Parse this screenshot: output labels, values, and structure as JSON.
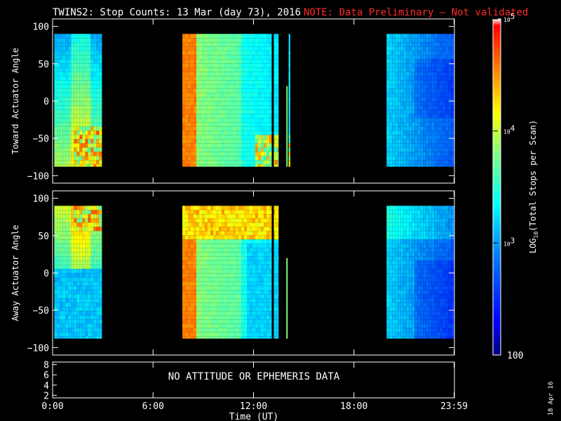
{
  "title": {
    "main": "TWINS2: Stop Counts: 13 Mar (day  73), 2016",
    "note": "NOTE: Data Preliminary – Not validated"
  },
  "chart_data": [
    {
      "type": "heatmap",
      "ylabel": "Toward Actuator Angle",
      "ylim": [
        -110,
        110
      ],
      "yticks": [
        "100",
        "50",
        "0",
        "−50",
        "−100"
      ],
      "ytick_values": [
        100,
        50,
        0,
        -50,
        -100
      ],
      "xlim_hours": [
        0,
        24
      ],
      "data_y_range": [
        -88,
        90
      ],
      "coverage_hours": [
        [
          0.1,
          2.95
        ],
        [
          7.75,
          13.5
        ],
        [
          14.1,
          14.2
        ],
        [
          19.95,
          24
        ]
      ],
      "gap_lines_hours": [
        13.15
      ],
      "spike": {
        "hour": 14.0,
        "y_range": [
          -88,
          20
        ]
      }
    },
    {
      "type": "heatmap",
      "ylabel": "Away Actuator Angle",
      "ylim": [
        -110,
        110
      ],
      "yticks": [
        "100",
        "50",
        "0",
        "−50",
        "−100"
      ],
      "ytick_values": [
        100,
        50,
        0,
        -50,
        -100
      ],
      "xlim_hours": [
        0,
        24
      ],
      "data_y_range": [
        -88,
        90
      ],
      "coverage_hours": [
        [
          0.1,
          2.95
        ],
        [
          7.75,
          13.5
        ],
        [
          19.95,
          24
        ]
      ],
      "gap_lines_hours": [
        13.15
      ],
      "spike": {
        "hour": 14.0,
        "y_range": [
          -88,
          20
        ]
      }
    }
  ],
  "xaxis": {
    "ticks": [
      "0:00",
      "6:00",
      "12:00",
      "18:00",
      "23:59"
    ],
    "tick_hours": [
      0,
      6,
      12,
      18,
      23.98
    ],
    "label": "Time (UT)"
  },
  "bottom_panel": {
    "yticks": [
      "8",
      "6",
      "4",
      "2"
    ],
    "ytick_values": [
      8,
      6,
      4,
      2
    ],
    "ylim": [
      1.5,
      8.5
    ],
    "message": "NO ATTITUDE OR EPHEMERIS DATA"
  },
  "colorbar": {
    "label_prefix": "LOG",
    "label_sub": "10",
    "label_suffix": "(Total Stops per Scan)",
    "tick_base": "10",
    "ticks": [
      {
        "exp": "5",
        "log": 5
      },
      {
        "exp": "4",
        "log": 4
      },
      {
        "exp": "3",
        "log": 3
      }
    ],
    "bottom_label": "100",
    "range_log": [
      2,
      5
    ],
    "colors": [
      "#00007f",
      "#0000ff",
      "#0080ff",
      "#00ffff",
      "#80ff80",
      "#ffff00",
      "#ff8000",
      "#ff0000",
      "#ffffff"
    ]
  },
  "date_stamp": "18 Apr 16"
}
